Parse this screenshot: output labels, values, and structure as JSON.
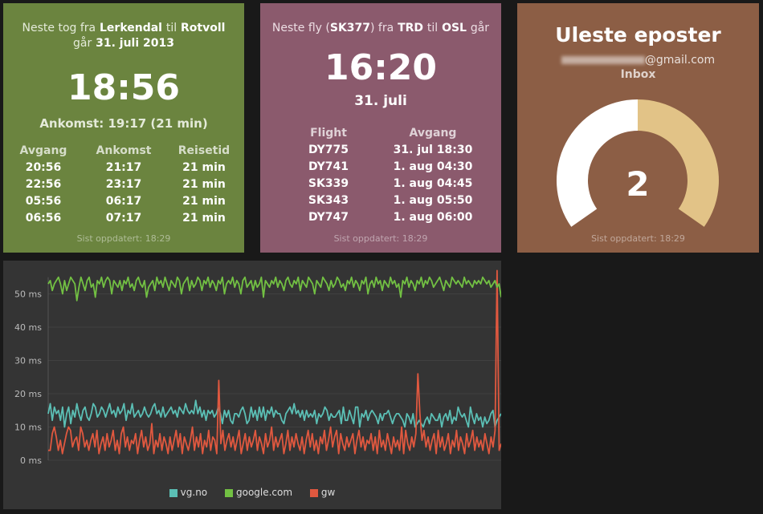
{
  "train": {
    "header_prefix": "Neste tog fra",
    "from": "Lerkendal",
    "mid": "til",
    "to": "Rotvoll",
    "date_prefix": "går",
    "date": "31. juli 2013",
    "time": "18:56",
    "arrival": "Ankomst: 19:17 (21 min)",
    "columns": [
      "Avgang",
      "Ankomst",
      "Reisetid"
    ],
    "rows": [
      [
        "20:56",
        "21:17",
        "21 min"
      ],
      [
        "22:56",
        "23:17",
        "21 min"
      ],
      [
        "05:56",
        "06:17",
        "21 min"
      ],
      [
        "06:56",
        "07:17",
        "21 min"
      ]
    ],
    "updated": "Sist oppdatert: 18:29",
    "color": "#6b843f"
  },
  "flight": {
    "header_prefix": "Neste fly (",
    "code": "SK377",
    "header_mid": ") fra",
    "from": "TRD",
    "mid": "til",
    "to": "OSL",
    "suffix": "går",
    "time": "16:20",
    "date": "31. juli",
    "columns": [
      "Flight",
      "Avgang"
    ],
    "rows": [
      [
        "DY775",
        "31. jul 18:30"
      ],
      [
        "DY741",
        "1. aug 04:30"
      ],
      [
        "SK339",
        "1. aug 04:45"
      ],
      [
        "SK343",
        "1. aug 05:50"
      ],
      [
        "DY747",
        "1. aug 06:00"
      ]
    ],
    "updated": "Sist oppdatert: 18:29",
    "color": "#8b5a6d"
  },
  "mail": {
    "title": "Uleste eposter",
    "email_domain": "@gmail.com",
    "folder": "Inbox",
    "count": "2",
    "gauge_fraction": 0.5,
    "gauge_track_color": "#ffffff",
    "gauge_fill_color": "#e2c387",
    "updated": "Sist oppdatert: 18:29",
    "color": "#8c5e45"
  },
  "chart_data": {
    "type": "line",
    "ylim": [
      0,
      55
    ],
    "yticks": [
      0,
      10,
      20,
      30,
      40,
      50
    ],
    "ytick_labels": [
      "0 ms",
      "10 ms",
      "20 ms",
      "30 ms",
      "40 ms",
      "50 ms"
    ],
    "grid": true,
    "legend_position": "bottom",
    "series": [
      {
        "name": "vg.no",
        "color": "#5bbfb5",
        "values": [
          14,
          17,
          12,
          16,
          14,
          15,
          12,
          16,
          10,
          14,
          16,
          11,
          15,
          13,
          17,
          14,
          12,
          15,
          16,
          13,
          12,
          14,
          17,
          16,
          13,
          14,
          16,
          15,
          13,
          15,
          17,
          14,
          15,
          13,
          16,
          14,
          15,
          17,
          12,
          15,
          14,
          17,
          13,
          14,
          15,
          13,
          14,
          16,
          14,
          13,
          14,
          16,
          17,
          14,
          15,
          13,
          16,
          13,
          14,
          15,
          16,
          14,
          15,
          13,
          16,
          15,
          14,
          17,
          15,
          14,
          15,
          14,
          18,
          14,
          16,
          13,
          15,
          12,
          15,
          14,
          15,
          13,
          14,
          16,
          14,
          11,
          15,
          13,
          15,
          12,
          11,
          14,
          14,
          13,
          15,
          16,
          14,
          11,
          12,
          16,
          13,
          15,
          12,
          16,
          13,
          16,
          12,
          15,
          14,
          16,
          13,
          15,
          14,
          14,
          12,
          11,
          14,
          15,
          16,
          14,
          17,
          14,
          15,
          13,
          15,
          12,
          15,
          13,
          14,
          13,
          15,
          11,
          14,
          13,
          14,
          16,
          15,
          12,
          14,
          13,
          13,
          14,
          15,
          11,
          16,
          12,
          12,
          15,
          13,
          11,
          16,
          16,
          10,
          14,
          13,
          15,
          12,
          14,
          15,
          14,
          13,
          11,
          14,
          12,
          14,
          14,
          15,
          13,
          11,
          13,
          14,
          14,
          13,
          12,
          10,
          14,
          13,
          11,
          14,
          10,
          11,
          12,
          11,
          10,
          12,
          13,
          11,
          14,
          13,
          12,
          12,
          14,
          10,
          13,
          14,
          12,
          15,
          11,
          13,
          12,
          16,
          14,
          13,
          14,
          12,
          10,
          16,
          13,
          11,
          14,
          12,
          13,
          10,
          13,
          11,
          12,
          14,
          15,
          10,
          12,
          13,
          14
        ]
      },
      {
        "name": "google.com",
        "color": "#72c043",
        "values": [
          53,
          54,
          51,
          53,
          54,
          55,
          53,
          50,
          54,
          51,
          53,
          55,
          54,
          53,
          48,
          52,
          55,
          53,
          51,
          54,
          55,
          52,
          53,
          49,
          54,
          53,
          55,
          52,
          54,
          55,
          54,
          50,
          54,
          53,
          52,
          54,
          51,
          54,
          53,
          55,
          52,
          53,
          51,
          54,
          55,
          53,
          52,
          54,
          49,
          52,
          53,
          54,
          51,
          55,
          53,
          54,
          52,
          55,
          53,
          51,
          54,
          53,
          52,
          55,
          54,
          50,
          53,
          54,
          55,
          51,
          54,
          52,
          53,
          55,
          54,
          51,
          54,
          53,
          55,
          52,
          54,
          53,
          51,
          54,
          53,
          55,
          50,
          53,
          54,
          53,
          55,
          52,
          54,
          53,
          50,
          54,
          55,
          52,
          53,
          54,
          51,
          54,
          52,
          53,
          55,
          49,
          54,
          53,
          52,
          54,
          53,
          55,
          52,
          54,
          53,
          51,
          54,
          55,
          53,
          52,
          54,
          53,
          55,
          51,
          54,
          53,
          52,
          55,
          54,
          53,
          50,
          54,
          53,
          52,
          55,
          54,
          53,
          51,
          54,
          52,
          53,
          55,
          54,
          52,
          53,
          51,
          54,
          53,
          55,
          52,
          54,
          53,
          51,
          54,
          53,
          55,
          50,
          53,
          54,
          52,
          55,
          53,
          54,
          51,
          54,
          53,
          52,
          55,
          53,
          54,
          52,
          53,
          49,
          54,
          53,
          55,
          52,
          54,
          53,
          51,
          54,
          53,
          55,
          52,
          54,
          53,
          55,
          54,
          52,
          53,
          54,
          55,
          53,
          51,
          54,
          53,
          52,
          55,
          54,
          53,
          54,
          53,
          52,
          55,
          53,
          54,
          53,
          52,
          54,
          53,
          54,
          53,
          55,
          54,
          53,
          54,
          52,
          53,
          54,
          52,
          53,
          49
        ]
      },
      {
        "name": "gw",
        "color": "#e0583f",
        "values": [
          3,
          3,
          8,
          10,
          7,
          3,
          6,
          2,
          5,
          8,
          10,
          9,
          4,
          6,
          7,
          3,
          10,
          8,
          4,
          6,
          3,
          6,
          8,
          4,
          9,
          2,
          5,
          7,
          3,
          8,
          4,
          6,
          9,
          3,
          6,
          2,
          8,
          10,
          4,
          7,
          3,
          6,
          5,
          8,
          2,
          6,
          9,
          4,
          7,
          3,
          5,
          11,
          2,
          6,
          4,
          8,
          3,
          7,
          5,
          2,
          7,
          3,
          6,
          9,
          4,
          8,
          2,
          7,
          5,
          3,
          6,
          10,
          3,
          7,
          4,
          8,
          2,
          6,
          4,
          9,
          3,
          7,
          6,
          2,
          24,
          5,
          9,
          3,
          6,
          8,
          4,
          7,
          3,
          6,
          9,
          2,
          5,
          8,
          3,
          7,
          4,
          6,
          9,
          3,
          7,
          5,
          2,
          8,
          4,
          6,
          10,
          3,
          7,
          4,
          6,
          8,
          2,
          5,
          9,
          3,
          7,
          4,
          8,
          5,
          3,
          7,
          2,
          6,
          9,
          4,
          8,
          3,
          6,
          2,
          7,
          5,
          9,
          3,
          6,
          10,
          4,
          7,
          9,
          2,
          8,
          5,
          3,
          7,
          4,
          6,
          8,
          2,
          6,
          9,
          4,
          7,
          3,
          6,
          5,
          8,
          3,
          7,
          2,
          9,
          4,
          6,
          3,
          8,
          5,
          2,
          7,
          4,
          6,
          3,
          10,
          2,
          9,
          5,
          3,
          7,
          4,
          8,
          26,
          14,
          6,
          9,
          4,
          7,
          3,
          6,
          8,
          2,
          9,
          4,
          7,
          3,
          5,
          8,
          2,
          6,
          4,
          9,
          3,
          7,
          5,
          2,
          8,
          4,
          6,
          9,
          3,
          7,
          4,
          6,
          3,
          8,
          5,
          2,
          7,
          4,
          9,
          57,
          3,
          5
        ]
      }
    ]
  }
}
